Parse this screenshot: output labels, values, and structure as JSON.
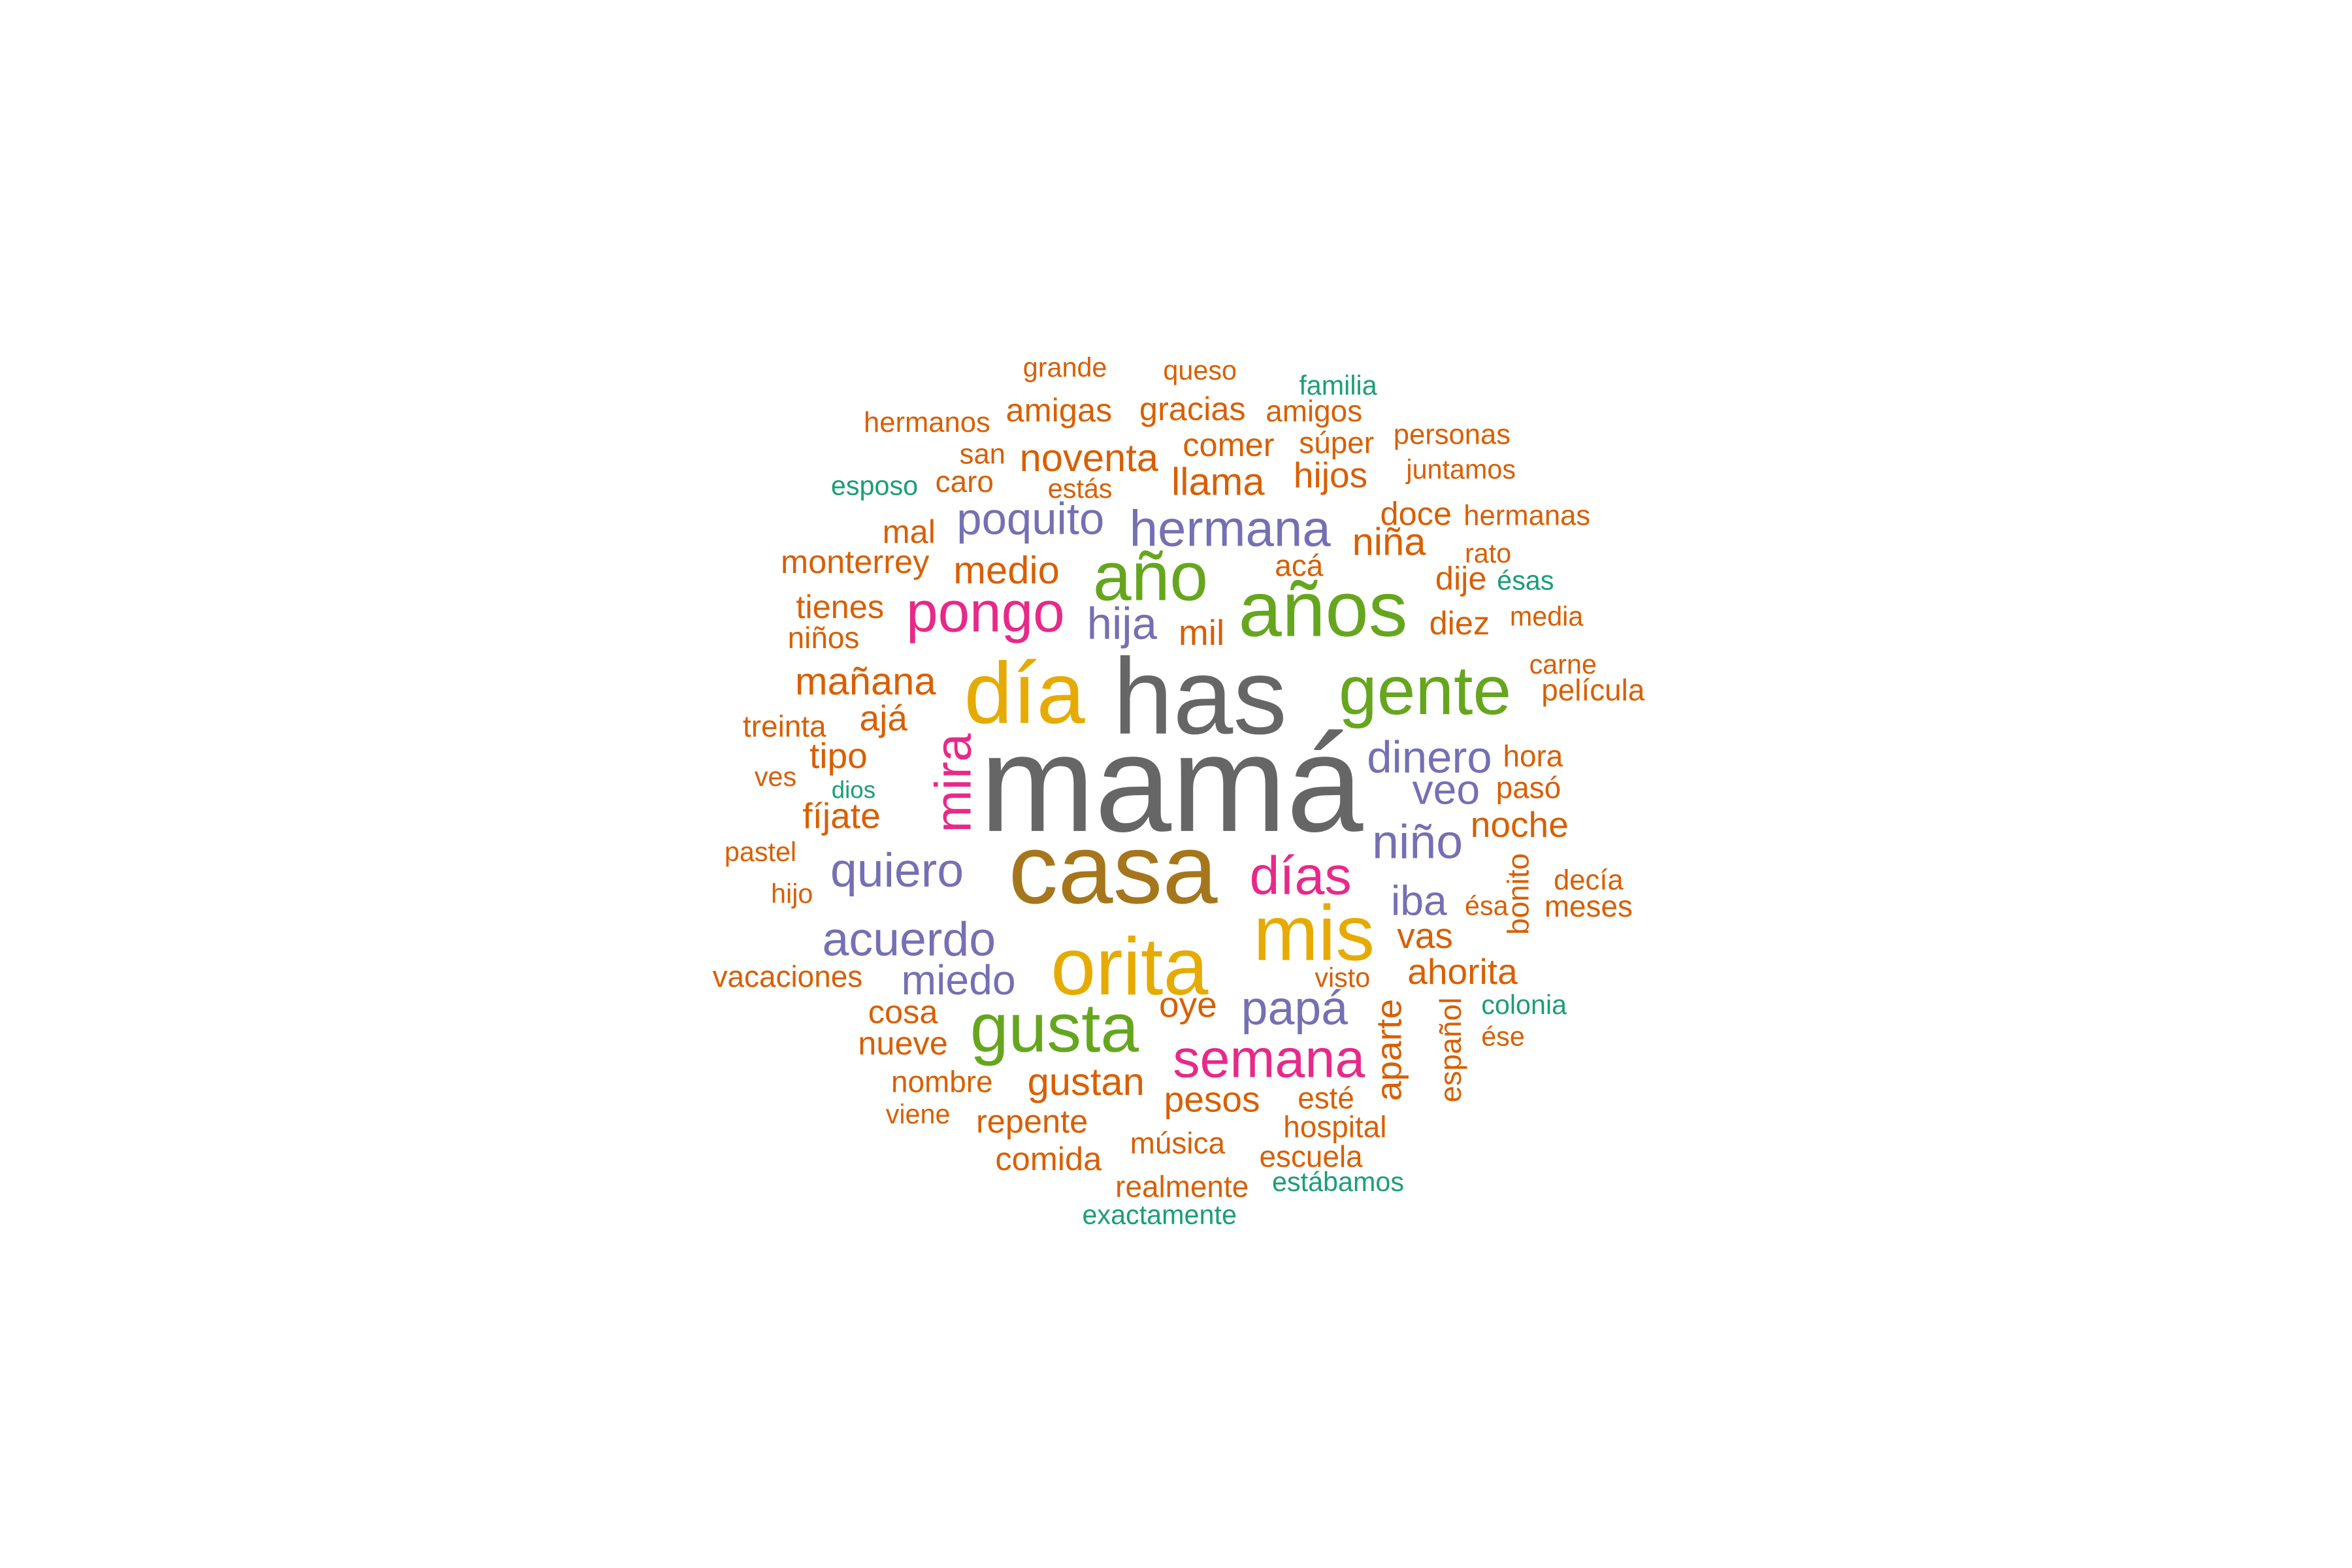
{
  "colors": {
    "orange": "#D95F02",
    "teal": "#1B9E77",
    "purple": "#7570B3",
    "magenta": "#E7298A",
    "green": "#66A61E",
    "yellow": "#E6AB02",
    "brown": "#A6761D",
    "gray": "#666666"
  },
  "words": [
    {
      "text": "mamá",
      "color": "gray"
    },
    {
      "text": "has",
      "color": "gray"
    },
    {
      "text": "casa",
      "color": "brown"
    },
    {
      "text": "día",
      "color": "yellow"
    },
    {
      "text": "orita",
      "color": "yellow"
    },
    {
      "text": "mis",
      "color": "yellow"
    },
    {
      "text": "años",
      "color": "green"
    },
    {
      "text": "año",
      "color": "green"
    },
    {
      "text": "gente",
      "color": "green"
    },
    {
      "text": "gusta",
      "color": "green"
    },
    {
      "text": "pongo",
      "color": "magenta"
    },
    {
      "text": "mira",
      "color": "magenta"
    },
    {
      "text": "días",
      "color": "magenta"
    },
    {
      "text": "semana",
      "color": "magenta"
    },
    {
      "text": "hermana",
      "color": "purple"
    },
    {
      "text": "poquito",
      "color": "purple"
    },
    {
      "text": "hija",
      "color": "purple"
    },
    {
      "text": "dinero",
      "color": "purple"
    },
    {
      "text": "veo",
      "color": "purple"
    },
    {
      "text": "niño",
      "color": "purple"
    },
    {
      "text": "quiero",
      "color": "purple"
    },
    {
      "text": "acuerdo",
      "color": "purple"
    },
    {
      "text": "miedo",
      "color": "purple"
    },
    {
      "text": "iba",
      "color": "purple"
    },
    {
      "text": "papá",
      "color": "purple"
    },
    {
      "text": "grande",
      "color": "orange"
    },
    {
      "text": "queso",
      "color": "orange"
    },
    {
      "text": "familia",
      "color": "teal"
    },
    {
      "text": "hermanos",
      "color": "orange"
    },
    {
      "text": "amigas",
      "color": "orange"
    },
    {
      "text": "gracias",
      "color": "orange"
    },
    {
      "text": "amigos",
      "color": "orange"
    },
    {
      "text": "personas",
      "color": "orange"
    },
    {
      "text": "san",
      "color": "orange"
    },
    {
      "text": "noventa",
      "color": "orange"
    },
    {
      "text": "comer",
      "color": "orange"
    },
    {
      "text": "súper",
      "color": "orange"
    },
    {
      "text": "juntamos",
      "color": "orange"
    },
    {
      "text": "esposo",
      "color": "teal"
    },
    {
      "text": "caro",
      "color": "orange"
    },
    {
      "text": "estás",
      "color": "orange"
    },
    {
      "text": "llama",
      "color": "orange"
    },
    {
      "text": "hijos",
      "color": "orange"
    },
    {
      "text": "doce",
      "color": "orange"
    },
    {
      "text": "hermanas",
      "color": "orange"
    },
    {
      "text": "mal",
      "color": "orange"
    },
    {
      "text": "niña",
      "color": "orange"
    },
    {
      "text": "rato",
      "color": "orange"
    },
    {
      "text": "monterrey",
      "color": "orange"
    },
    {
      "text": "medio",
      "color": "orange"
    },
    {
      "text": "acá",
      "color": "orange"
    },
    {
      "text": "dije",
      "color": "orange"
    },
    {
      "text": "ésas",
      "color": "teal"
    },
    {
      "text": "tienes",
      "color": "orange"
    },
    {
      "text": "mil",
      "color": "orange"
    },
    {
      "text": "diez",
      "color": "orange"
    },
    {
      "text": "media",
      "color": "orange"
    },
    {
      "text": "niños",
      "color": "orange"
    },
    {
      "text": "carne",
      "color": "orange"
    },
    {
      "text": "mañana",
      "color": "orange"
    },
    {
      "text": "película",
      "color": "orange"
    },
    {
      "text": "ajá",
      "color": "orange"
    },
    {
      "text": "treinta",
      "color": "orange"
    },
    {
      "text": "hora",
      "color": "orange"
    },
    {
      "text": "tipo",
      "color": "orange"
    },
    {
      "text": "ves",
      "color": "orange"
    },
    {
      "text": "dios",
      "color": "teal"
    },
    {
      "text": "pasó",
      "color": "orange"
    },
    {
      "text": "fíjate",
      "color": "orange"
    },
    {
      "text": "noche",
      "color": "orange"
    },
    {
      "text": "pastel",
      "color": "orange"
    },
    {
      "text": "bonito",
      "color": "orange"
    },
    {
      "text": "decía",
      "color": "orange"
    },
    {
      "text": "hijo",
      "color": "orange"
    },
    {
      "text": "ésa",
      "color": "orange"
    },
    {
      "text": "meses",
      "color": "orange"
    },
    {
      "text": "vas",
      "color": "orange"
    },
    {
      "text": "vacaciones",
      "color": "orange"
    },
    {
      "text": "visto",
      "color": "orange"
    },
    {
      "text": "ahorita",
      "color": "orange"
    },
    {
      "text": "colonia",
      "color": "teal"
    },
    {
      "text": "oye",
      "color": "orange"
    },
    {
      "text": "cosa",
      "color": "orange"
    },
    {
      "text": "aparte",
      "color": "orange"
    },
    {
      "text": "español",
      "color": "orange"
    },
    {
      "text": "ése",
      "color": "orange"
    },
    {
      "text": "nueve",
      "color": "orange"
    },
    {
      "text": "nombre",
      "color": "orange"
    },
    {
      "text": "gustan",
      "color": "orange"
    },
    {
      "text": "esté",
      "color": "orange"
    },
    {
      "text": "pesos",
      "color": "orange"
    },
    {
      "text": "viene",
      "color": "orange"
    },
    {
      "text": "repente",
      "color": "orange"
    },
    {
      "text": "hospital",
      "color": "orange"
    },
    {
      "text": "música",
      "color": "orange"
    },
    {
      "text": "comida",
      "color": "orange"
    },
    {
      "text": "escuela",
      "color": "orange"
    },
    {
      "text": "realmente",
      "color": "orange"
    },
    {
      "text": "estábamos",
      "color": "teal"
    },
    {
      "text": "exactamente",
      "color": "teal"
    }
  ]
}
